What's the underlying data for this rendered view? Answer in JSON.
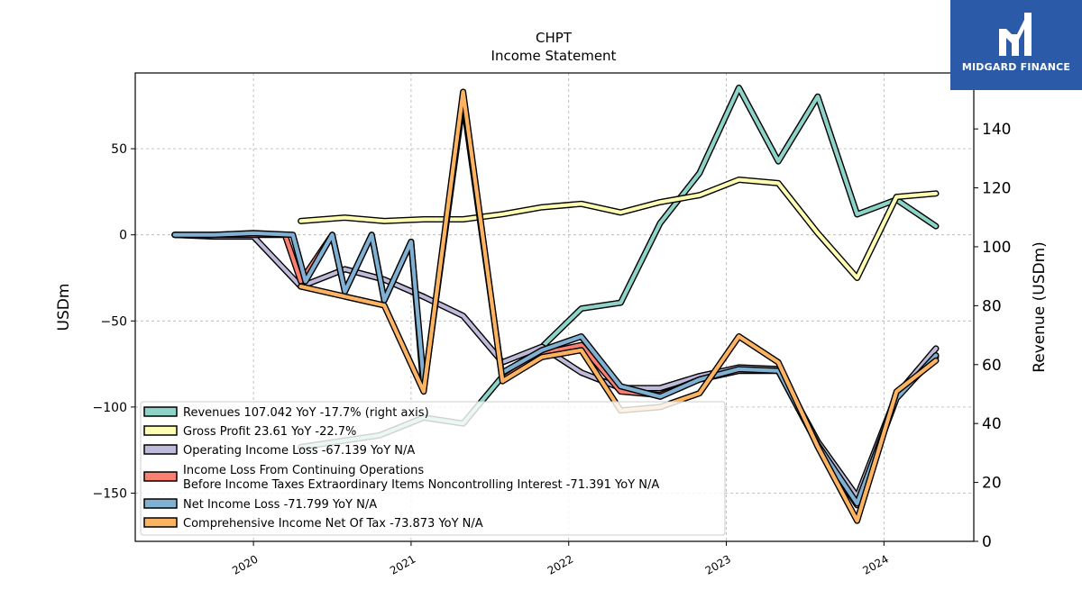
{
  "chart_data": {
    "type": "line",
    "title": "CHPT",
    "subtitle": "Income Statement",
    "ylabel_left": "USDm",
    "ylabel_right": "Revenue (USDm)",
    "xlim": [
      2019.25,
      2024.57
    ],
    "ylim_left": [
      -178,
      94
    ],
    "ylim_right": [
      0,
      159
    ],
    "x_ticks": [
      "2020",
      "2021",
      "2022",
      "2023",
      "2024"
    ],
    "y_ticks_left": [
      "50",
      "0",
      "−50",
      "−100",
      "−150"
    ],
    "y_ticks_left_values": [
      50,
      0,
      -50,
      -100,
      -150
    ],
    "y_ticks_right": [
      "0",
      "20",
      "40",
      "60",
      "80",
      "100",
      "120",
      "140"
    ],
    "y_ticks_right_values": [
      0,
      20,
      40,
      60,
      80,
      100,
      120,
      140
    ],
    "grid": true,
    "legend_position": "lower-left",
    "series": [
      {
        "name": "Revenues",
        "legend": "Revenues  107.042 YoY -17.7% (right axis)",
        "color": "#8dd3c7",
        "axis": "right",
        "x": [
          2020.3,
          2020.8,
          2021.08,
          2021.33,
          2021.58,
          2021.83,
          2022.08,
          2022.33,
          2022.58,
          2022.83,
          2023.08,
          2023.33,
          2023.58,
          2023.83,
          2024.08,
          2024.33
        ],
        "y": [
          32,
          36,
          42,
          40,
          56,
          66,
          79,
          81,
          108,
          125,
          154,
          129,
          151,
          111,
          116,
          107
        ]
      },
      {
        "name": "Gross Profit",
        "legend": "Gross Profit  23.61 YoY -22.7%",
        "color": "#ffffb3",
        "axis": "left",
        "x": [
          2020.3,
          2020.58,
          2020.83,
          2021.08,
          2021.33,
          2021.58,
          2021.83,
          2022.08,
          2022.33,
          2022.58,
          2022.83,
          2023.08,
          2023.33,
          2023.58,
          2023.83,
          2024.08,
          2024.33
        ],
        "y": [
          8,
          10,
          8,
          9,
          9,
          12,
          16,
          18,
          13,
          19,
          23,
          32,
          30,
          1,
          -25,
          22,
          24
        ]
      },
      {
        "name": "Operating Income Loss",
        "legend": "Operating Income Loss  -67.139 YoY N/A",
        "color": "#bebada",
        "axis": "left",
        "x": [
          2019.5,
          2019.75,
          2020.0,
          2020.3,
          2020.58,
          2020.83,
          2021.08,
          2021.33,
          2021.58,
          2021.83,
          2022.08,
          2022.33,
          2022.58,
          2022.83,
          2023.08,
          2023.33,
          2023.58,
          2023.83,
          2024.08,
          2024.33
        ],
        "y": [
          0,
          -1,
          -1,
          -30,
          -20,
          -26,
          -36,
          -47,
          -74,
          -65,
          -80,
          -89,
          -89,
          -82,
          -77,
          -78,
          -120,
          -152,
          -93,
          -66
        ]
      },
      {
        "name": "Income Loss From Continuing Operations",
        "legend": "Income Loss From Continuing Operations",
        "legend_line2": "Before Income Taxes Extraordinary Items Noncontrolling Interest  -71.391 YoY N/A",
        "color": "#fb8072",
        "axis": "left",
        "x": [
          2019.5,
          2019.75,
          2020.0,
          2020.2,
          2020.3,
          2020.5,
          2020.58,
          2020.75,
          2020.83,
          2021.0,
          2021.08,
          2021.33,
          2021.58,
          2021.83,
          2022.08,
          2022.33,
          2022.58,
          2022.83,
          2023.08,
          2023.33,
          2023.58,
          2023.83,
          2024.08,
          2024.33
        ],
        "y": [
          0,
          0,
          0,
          0,
          -27,
          0,
          -33,
          0,
          -38,
          -4,
          -90,
          78,
          -84,
          -69,
          -64,
          -91,
          -93,
          -84,
          -79,
          -79,
          -122,
          -157,
          -94,
          -71
        ]
      },
      {
        "name": "Net Income Loss",
        "legend": "Net Income Loss  -71.799 YoY N/A",
        "color": "#80b1d3",
        "axis": "left",
        "x": [
          2019.5,
          2019.75,
          2020.0,
          2020.25,
          2020.33,
          2020.5,
          2020.58,
          2020.75,
          2020.83,
          2021.0,
          2021.08
        ],
        "y": [
          0,
          0,
          1,
          0,
          -27,
          0,
          -33,
          0,
          -38,
          -4,
          -85
        ]
      },
      {
        "name": "Comprehensive Income Net Of Tax",
        "legend": "Comprehensive Income Net Of Tax  -73.873 YoY N/A",
        "color": "#fdb462",
        "axis": "left",
        "x": [
          2020.3,
          2020.83,
          2021.08,
          2021.33,
          2021.58,
          2021.83,
          2022.08,
          2022.33,
          2022.58,
          2022.83,
          2023.08,
          2023.33,
          2023.58,
          2023.83,
          2024.08,
          2024.33
        ],
        "y": [
          -30,
          -41,
          -91,
          83,
          -85,
          -71,
          -67,
          -102,
          -100,
          -92,
          -59,
          -74,
          -123,
          -166,
          -91,
          -73
        ]
      },
      {
        "name": "Net Income Loss (cont.)",
        "legend_hidden": true,
        "color": "#80b1d3",
        "axis": "left",
        "x": [
          2021.58,
          2021.83,
          2022.08,
          2022.33,
          2022.58,
          2022.83,
          2023.08,
          2023.33,
          2023.58,
          2023.83,
          2024.08,
          2024.33
        ],
        "y": [
          -80,
          -67,
          -59,
          -88,
          -94,
          -84,
          -78,
          -79,
          -122,
          -156,
          -95,
          -70
        ]
      }
    ]
  },
  "logo": {
    "text": "MIDGARD FINANCE",
    "bg": "#2a5aa8"
  }
}
